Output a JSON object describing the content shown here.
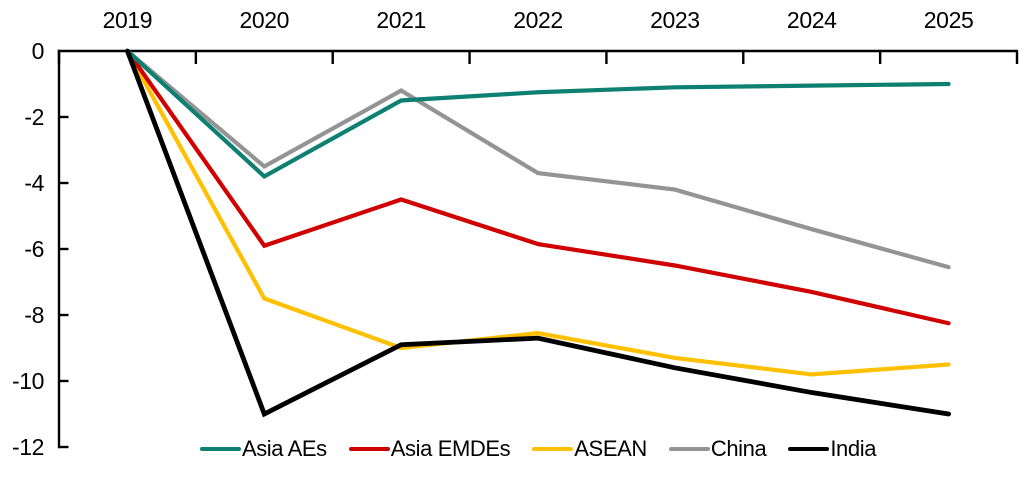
{
  "chart_data": {
    "type": "line",
    "title": "",
    "categories": [
      "2019",
      "2020",
      "2021",
      "2022",
      "2023",
      "2024",
      "2025"
    ],
    "x_axis": {
      "position": "top",
      "ticks_between_categories": true
    },
    "y_axis": {
      "min": -12,
      "max": 0,
      "tick_step": 2,
      "tick_values": [
        0,
        -2,
        -4,
        -6,
        -8,
        -10,
        -12
      ],
      "tick_labels": [
        "0",
        "-2",
        "-4",
        "-6",
        "-8",
        "-10",
        "-12"
      ]
    },
    "series": [
      {
        "name": "Asia AEs",
        "color": "#0D8072",
        "values": [
          0,
          -3.8,
          -1.5,
          -1.25,
          -1.1,
          -1.05,
          -1.0
        ]
      },
      {
        "name": "Asia EMDEs",
        "color": "#D00000",
        "values": [
          0,
          -5.9,
          -4.5,
          -5.85,
          -6.5,
          -7.3,
          -8.25
        ]
      },
      {
        "name": "ASEAN",
        "color": "#FFC000",
        "values": [
          0,
          -7.5,
          -9.0,
          -8.55,
          -9.3,
          -9.8,
          -9.5
        ]
      },
      {
        "name": "China",
        "color": "#949494",
        "values": [
          0,
          -3.5,
          -1.2,
          -3.7,
          -4.2,
          -5.4,
          -6.55
        ]
      },
      {
        "name": "India",
        "color": "#000000",
        "values": [
          0,
          -11.0,
          -8.9,
          -8.7,
          -9.6,
          -10.35,
          -11.0
        ]
      }
    ],
    "draw_order": [
      "China",
      "ASEAN",
      "Asia EMDEs",
      "Asia AEs",
      "India"
    ],
    "legend": {
      "position": "bottom",
      "entries": [
        "Asia AEs",
        "Asia EMDEs",
        "ASEAN",
        "China",
        "India"
      ]
    },
    "grid": false,
    "background": "#FFFFFF"
  }
}
